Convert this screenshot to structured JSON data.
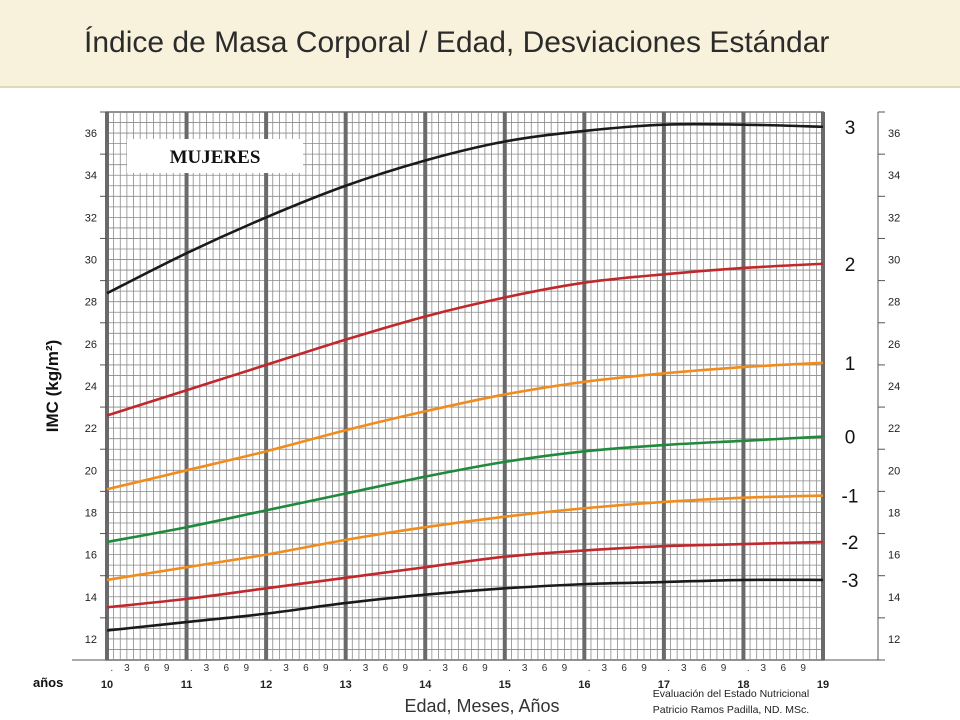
{
  "header": {
    "title": "Índice de Masa Corporal / Edad, Desviaciones Estándar"
  },
  "footer": {
    "line1": "Evaluación del Estado Nutricional",
    "line2": "Patricio Ramos Padilla, ND. MSc."
  },
  "colors": {
    "header_bg": "#f8f2dc",
    "sd_3": "#1a1a1a",
    "sd_2": "#c0282c",
    "sd_1": "#f08c1e",
    "median": "#1f8a3b"
  },
  "chart_data": {
    "type": "line",
    "title": "MUJERES",
    "ylabel": "IMC (kg/m²)",
    "xlabel": "Edad, Meses, Años",
    "x_unit_label": "años",
    "xlim": [
      10,
      19
    ],
    "ylim": [
      11,
      37
    ],
    "y_ticks": [
      12,
      14,
      16,
      18,
      20,
      22,
      24,
      26,
      28,
      30,
      32,
      34,
      36
    ],
    "x_year_labels": [
      "10",
      "11",
      "12",
      "13",
      "14",
      "15",
      "16",
      "17",
      "18",
      "19"
    ],
    "x_month_labels": [
      ".",
      "3",
      "6",
      "9"
    ],
    "grid": true,
    "x": [
      10,
      11,
      12,
      13,
      14,
      15,
      16,
      17,
      18,
      19
    ],
    "series": [
      {
        "name": "3",
        "color": "#1a1a1a",
        "values": [
          28.4,
          30.3,
          32.0,
          33.5,
          34.7,
          35.6,
          36.1,
          36.4,
          36.4,
          36.3
        ]
      },
      {
        "name": "2",
        "color": "#c0282c",
        "values": [
          22.6,
          23.8,
          25.0,
          26.2,
          27.3,
          28.2,
          28.9,
          29.3,
          29.6,
          29.8
        ]
      },
      {
        "name": "1",
        "color": "#f08c1e",
        "values": [
          19.1,
          20.0,
          20.9,
          21.9,
          22.8,
          23.6,
          24.2,
          24.6,
          24.9,
          25.1
        ]
      },
      {
        "name": "0",
        "color": "#1f8a3b",
        "values": [
          16.6,
          17.3,
          18.1,
          18.9,
          19.7,
          20.4,
          20.9,
          21.2,
          21.4,
          21.6
        ]
      },
      {
        "name": "-1",
        "color": "#f08c1e",
        "values": [
          14.8,
          15.4,
          16.0,
          16.7,
          17.3,
          17.8,
          18.2,
          18.5,
          18.7,
          18.8
        ]
      },
      {
        "name": "-2",
        "color": "#c0282c",
        "values": [
          13.5,
          13.9,
          14.4,
          14.9,
          15.4,
          15.9,
          16.2,
          16.4,
          16.5,
          16.6
        ]
      },
      {
        "name": "-3",
        "color": "#1a1a1a",
        "values": [
          12.4,
          12.8,
          13.2,
          13.7,
          14.1,
          14.4,
          14.6,
          14.7,
          14.8,
          14.8
        ]
      }
    ]
  }
}
